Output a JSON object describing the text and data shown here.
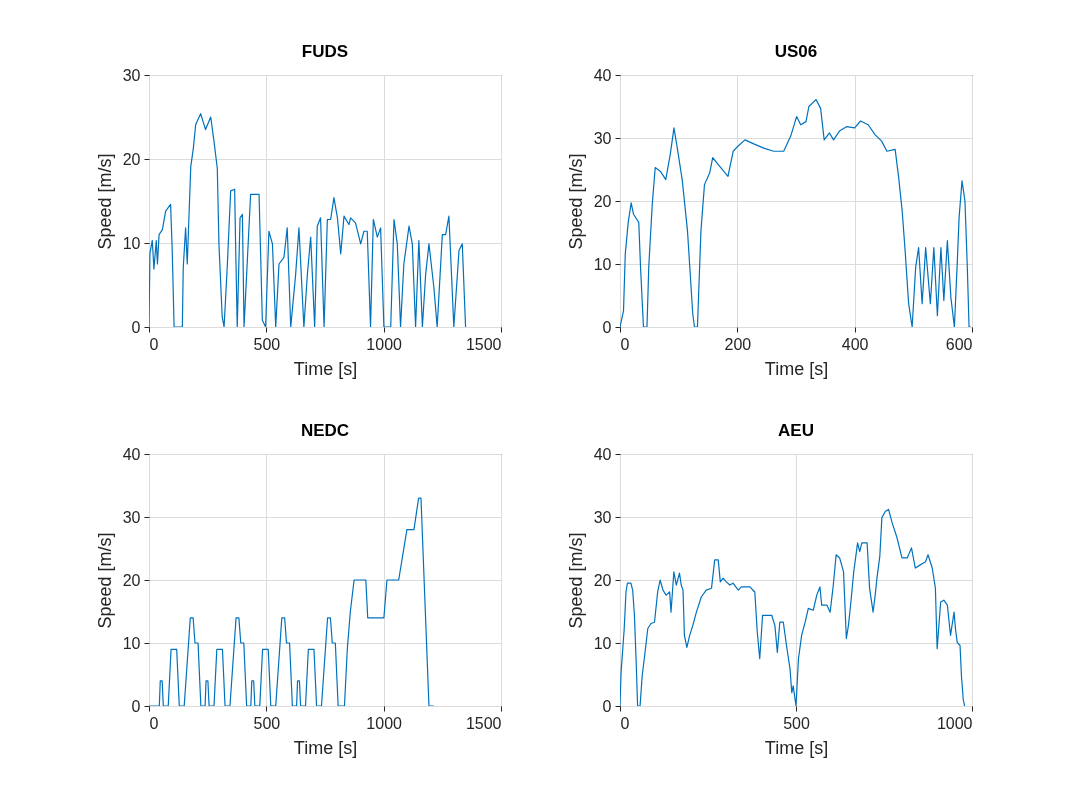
{
  "chart_data": [
    {
      "type": "line",
      "title": "FUDS",
      "xlabel": "Time [s]",
      "ylabel": "Speed [m/s]",
      "xlim": [
        0,
        1500
      ],
      "ylim": [
        0,
        30
      ],
      "xticks": [
        0,
        500,
        1000,
        1500
      ],
      "yticks": [
        0,
        10,
        20,
        30
      ],
      "grid": true,
      "x": [
        0,
        4,
        14,
        21,
        31,
        36,
        43,
        57,
        71,
        92,
        99,
        107,
        142,
        146,
        156,
        163,
        178,
        189,
        199,
        220,
        241,
        263,
        277,
        291,
        298,
        312,
        320,
        334,
        348,
        365,
        369,
        376,
        388,
        398,
        405,
        433,
        469,
        483,
        497,
        511,
        526,
        540,
        554,
        575,
        589,
        604,
        625,
        639,
        660,
        675,
        689,
        706,
        717,
        731,
        746,
        760,
        774,
        788,
        803,
        817,
        831,
        852,
        859,
        880,
        902,
        916,
        930,
        944,
        956,
        973,
        987,
        1001,
        1030,
        1044,
        1058,
        1072,
        1086,
        1108,
        1122,
        1136,
        1150,
        1165,
        1179,
        1193,
        1214,
        1228,
        1250,
        1264,
        1278,
        1299,
        1321,
        1335,
        1349
      ],
      "series": [
        {
          "color": "#0072bd",
          "values": [
            0,
            8.8,
            10.3,
            6.9,
            10.3,
            7.5,
            11,
            11.6,
            13.8,
            14.6,
            9.1,
            0,
            0,
            7.1,
            11.8,
            7.5,
            19.1,
            21.3,
            24.1,
            25.4,
            23.5,
            25,
            22.1,
            18.9,
            9.9,
            1.2,
            0,
            7.5,
            16.2,
            16.4,
            9.9,
            0,
            13,
            13.4,
            0,
            15.8,
            15.8,
            0.8,
            0,
            11.4,
            9.9,
            0,
            7.5,
            8.3,
            11.8,
            0,
            6.3,
            11.8,
            0,
            6.3,
            10.7,
            0,
            12,
            13,
            0,
            12.8,
            12.8,
            15.4,
            13,
            8.7,
            13.2,
            12.2,
            13,
            12.4,
            9.9,
            11.4,
            11.4,
            0,
            12.8,
            10.7,
            11.8,
            0,
            0,
            12.8,
            9.9,
            0,
            7.5,
            12,
            9.9,
            0,
            10.3,
            0,
            6.3,
            9.9,
            4.7,
            0,
            11,
            11,
            13.2,
            0,
            9.1,
            9.9,
            0
          ]
        }
      ]
    },
    {
      "type": "line",
      "title": "US06",
      "xlabel": "Time [s]",
      "ylabel": "Speed [m/s]",
      "xlim": [
        0,
        600
      ],
      "ylim": [
        0,
        40
      ],
      "xticks": [
        0,
        200,
        400,
        600
      ],
      "yticks": [
        0,
        10,
        20,
        30,
        40
      ],
      "grid": true,
      "x": [
        0,
        6,
        9,
        14,
        19,
        23,
        32,
        35,
        40,
        46,
        49,
        55,
        60,
        69,
        78,
        86,
        92,
        98,
        106,
        115,
        124,
        127,
        132,
        138,
        144,
        153,
        158,
        170,
        184,
        193,
        201,
        213,
        227,
        245,
        262,
        279,
        291,
        301,
        308,
        317,
        322,
        334,
        342,
        348,
        357,
        364,
        374,
        386,
        400,
        410,
        423,
        435,
        446,
        455,
        469,
        475,
        481,
        486,
        492,
        498,
        504,
        509,
        515,
        521,
        529,
        535,
        541,
        547,
        552,
        558,
        564,
        570,
        575,
        578,
        583,
        588,
        592,
        595,
        598
      ],
      "series": [
        {
          "color": "#0072bd",
          "values": [
            0,
            2.6,
            11.6,
            16.6,
            19.7,
            17.9,
            16.6,
            9.5,
            0,
            0,
            9.5,
            19.5,
            25.3,
            24.7,
            23.4,
            27.6,
            31.6,
            28.2,
            23.4,
            15.3,
            2.1,
            0,
            0,
            15.3,
            22.6,
            24.5,
            26.9,
            25.5,
            23.9,
            27.9,
            28.7,
            29.7,
            29.1,
            28.4,
            27.9,
            27.9,
            30.3,
            33.4,
            32.1,
            32.6,
            35,
            36.1,
            34.7,
            29.7,
            30.8,
            29.7,
            31.1,
            31.8,
            31.6,
            32.7,
            32.1,
            30.5,
            29.5,
            27.9,
            28.2,
            23.7,
            18.4,
            12.1,
            3.7,
            0,
            9.5,
            12.6,
            3.7,
            12.6,
            3.7,
            12.6,
            1.8,
            12.6,
            4.2,
            13.7,
            4.7,
            0,
            10.5,
            17.4,
            23.2,
            20,
            9.5,
            0,
            0
          ]
        }
      ]
    },
    {
      "type": "line",
      "title": "NEDC",
      "xlabel": "Time [s]",
      "ylabel": "Speed [m/s]",
      "xlim": [
        0,
        1500
      ],
      "ylim": [
        0,
        40
      ],
      "xticks": [
        0,
        500,
        1000,
        1500
      ],
      "yticks": [
        0,
        10,
        20,
        30,
        40
      ],
      "grid": true,
      "x": [
        0,
        44,
        48,
        56,
        61,
        82,
        94,
        118,
        129,
        150,
        176,
        188,
        196,
        209,
        221,
        239,
        243,
        251,
        256,
        277,
        289,
        313,
        324,
        345,
        371,
        383,
        391,
        404,
        416,
        434,
        438,
        446,
        451,
        472,
        484,
        508,
        519,
        540,
        566,
        578,
        586,
        599,
        611,
        629,
        633,
        641,
        646,
        667,
        679,
        703,
        714,
        735,
        761,
        773,
        781,
        794,
        806,
        833,
        845,
        858,
        874,
        924,
        932,
        1001,
        1014,
        1064,
        1099,
        1129,
        1149,
        1159,
        1193,
        1213
      ],
      "series": [
        {
          "color": "#0072bd",
          "values": [
            0,
            0,
            4,
            4,
            0,
            0,
            9,
            9,
            0,
            0,
            14,
            14,
            10,
            10,
            0,
            0,
            4,
            4,
            0,
            0,
            9,
            9,
            0,
            0,
            14,
            14,
            10,
            10,
            0,
            0,
            4,
            4,
            0,
            0,
            9,
            9,
            0,
            0,
            14,
            14,
            10,
            10,
            0,
            0,
            4,
            4,
            0,
            0,
            9,
            9,
            0,
            0,
            14,
            14,
            10,
            10,
            0,
            0,
            9,
            15,
            20,
            20,
            14,
            14,
            20,
            20,
            28,
            28,
            33,
            33,
            0,
            0
          ]
        }
      ]
    },
    {
      "type": "line",
      "title": "AEU",
      "xlabel": "Time [s]",
      "ylabel": "Speed [m/s]",
      "xlim": [
        0,
        1000
      ],
      "ylim": [
        0,
        40
      ],
      "xticks": [
        0,
        500,
        1000
      ],
      "yticks": [
        0,
        10,
        20,
        30,
        40
      ],
      "grid": true,
      "x": [
        0,
        3,
        12,
        17,
        21,
        31,
        36,
        41,
        46,
        50,
        57,
        63,
        69,
        79,
        88,
        98,
        107,
        114,
        122,
        131,
        141,
        145,
        153,
        160,
        169,
        174,
        179,
        183,
        190,
        198,
        207,
        217,
        231,
        245,
        260,
        269,
        279,
        285,
        293,
        302,
        312,
        321,
        336,
        345,
        369,
        383,
        390,
        397,
        405,
        416,
        431,
        440,
        447,
        454,
        464,
        473,
        483,
        488,
        492,
        500,
        507,
        516,
        526,
        535,
        549,
        559,
        568,
        573,
        588,
        597,
        606,
        614,
        624,
        635,
        643,
        649,
        656,
        664,
        675,
        681,
        687,
        702,
        709,
        719,
        725,
        730,
        738,
        744,
        754,
        763,
        773,
        787,
        801,
        816,
        828,
        839,
        853,
        868,
        875,
        887,
        896,
        901,
        911,
        920,
        930,
        939,
        949,
        953,
        958,
        966,
        970,
        975,
        979
      ],
      "series": [
        {
          "color": "#0072bd",
          "values": [
            0,
            5.3,
            12.3,
            18.1,
            19.5,
            19.5,
            18.4,
            14.4,
            6.9,
            0,
            0,
            4.8,
            7.5,
            12.3,
            13.1,
            13.3,
            18.1,
            20,
            18.4,
            17.6,
            18.1,
            14.9,
            21.3,
            19.2,
            21.1,
            19.2,
            18.4,
            11.2,
            9.3,
            11.2,
            12.8,
            14.9,
            17.3,
            18.4,
            18.7,
            23.2,
            23.2,
            19.7,
            20.3,
            19.7,
            19.2,
            19.5,
            18.4,
            18.9,
            18.9,
            18.1,
            11.7,
            7.5,
            14.4,
            14.4,
            14.4,
            12.8,
            8.5,
            13.3,
            13.3,
            9.6,
            5.9,
            2.1,
            3.2,
            0,
            7.5,
            11.2,
            13.3,
            15.5,
            15.2,
            17.6,
            18.9,
            16,
            16,
            14.9,
            19.2,
            24,
            23.5,
            21.3,
            10.7,
            12.8,
            16.5,
            21.3,
            25.9,
            24.5,
            25.9,
            25.9,
            18.7,
            14.9,
            17.6,
            20.3,
            23.7,
            29.9,
            30.9,
            31.2,
            29.1,
            26.7,
            23.5,
            23.5,
            25.1,
            21.9,
            22.4,
            22.9,
            24,
            21.9,
            18.7,
            9.1,
            16.5,
            16.8,
            16,
            11.2,
            14.9,
            12.3,
            10.1,
            9.6,
            4.8,
            1.1,
            0
          ]
        }
      ]
    }
  ]
}
